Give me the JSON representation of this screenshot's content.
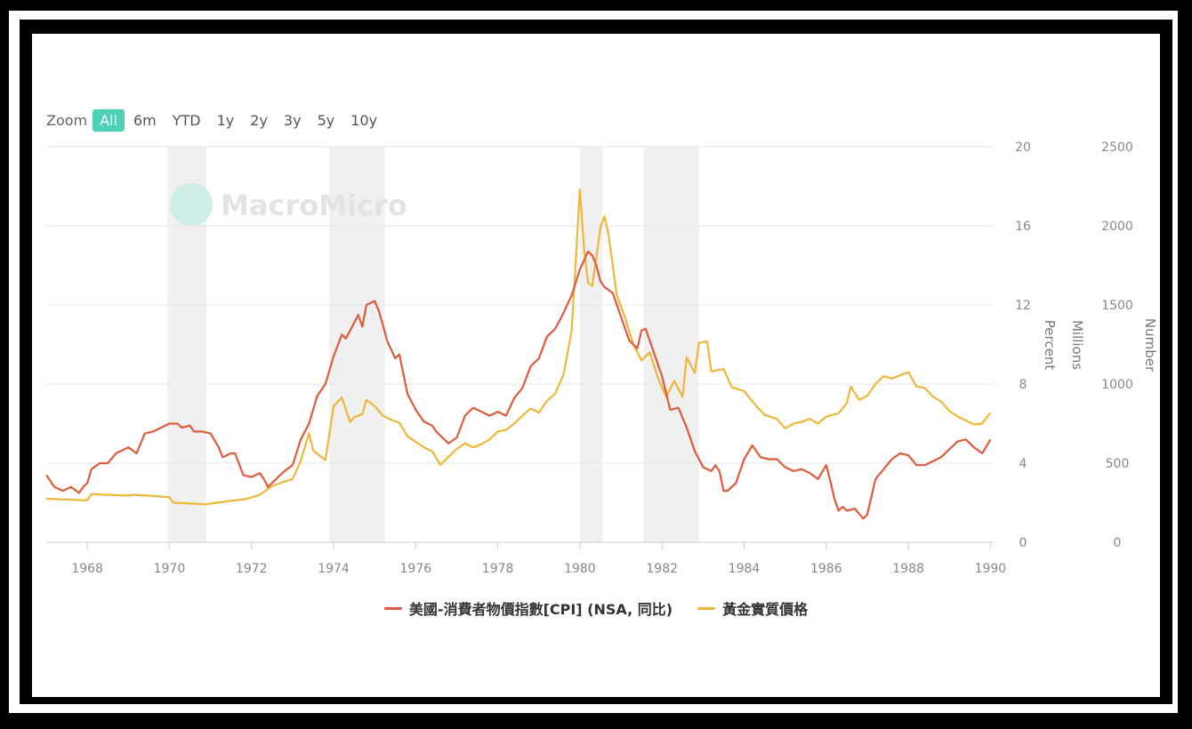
{
  "zoom": {
    "label": "Zoom",
    "buttons": [
      "All",
      "6m",
      "YTD",
      "1y",
      "2y",
      "3y",
      "5y",
      "10y"
    ],
    "active": "All"
  },
  "watermark": "MacroMicro",
  "colors": {
    "cpi": "#e05a3c",
    "gold": "#f0b63a",
    "recession": "#f0f0f0",
    "grid": "#e6e6e6",
    "axis_text": "#888888",
    "active_zoom": "#4fd1b5"
  },
  "legend": [
    {
      "label": "美國-消費者物價指數[CPI] (NSA, 同比)",
      "color_key": "cpi"
    },
    {
      "label": "黃金實質價格",
      "color_key": "gold"
    }
  ],
  "chart_data": {
    "type": "line",
    "x_range": [
      1967,
      1990.1
    ],
    "x_ticks": [
      "1968",
      "1970",
      "1972",
      "1974",
      "1976",
      "1978",
      "1980",
      "1982",
      "1984",
      "1986",
      "1988",
      "1990"
    ],
    "axes": [
      {
        "id": "percent",
        "label": "Percent",
        "ylim": [
          0,
          20
        ],
        "ticks": [
          "0",
          "4",
          "8",
          "12",
          "16",
          "20"
        ]
      },
      {
        "id": "millions",
        "label": "Millions",
        "ylim": [
          0,
          2500
        ],
        "ticks": []
      },
      {
        "id": "number",
        "label": "Number",
        "ylim": [
          0,
          2500
        ],
        "ticks": [
          "0",
          "500",
          "1000",
          "1500",
          "2000",
          "2500"
        ]
      }
    ],
    "recessions": [
      [
        1969.95,
        1970.9
      ],
      [
        1973.9,
        1975.25
      ],
      [
        1980.0,
        1980.55
      ],
      [
        1981.55,
        1982.9
      ]
    ],
    "series": [
      {
        "name": "美國-消費者物價指數[CPI] (NSA, 同比)",
        "axis": "percent",
        "color_key": "cpi",
        "points": [
          [
            1967.0,
            3.4
          ],
          [
            1967.2,
            2.8
          ],
          [
            1967.4,
            2.6
          ],
          [
            1967.6,
            2.8
          ],
          [
            1967.8,
            2.5
          ],
          [
            1967.9,
            2.8
          ],
          [
            1968.0,
            3.0
          ],
          [
            1968.1,
            3.7
          ],
          [
            1968.3,
            4.0
          ],
          [
            1968.5,
            4.0
          ],
          [
            1968.7,
            4.5
          ],
          [
            1968.9,
            4.7
          ],
          [
            1969.0,
            4.8
          ],
          [
            1969.2,
            4.5
          ],
          [
            1969.4,
            5.5
          ],
          [
            1969.6,
            5.6
          ],
          [
            1969.8,
            5.8
          ],
          [
            1970.0,
            6.0
          ],
          [
            1970.2,
            6.0
          ],
          [
            1970.3,
            5.8
          ],
          [
            1970.5,
            5.9
          ],
          [
            1970.6,
            5.6
          ],
          [
            1970.8,
            5.6
          ],
          [
            1971.0,
            5.5
          ],
          [
            1971.2,
            4.8
          ],
          [
            1971.3,
            4.3
          ],
          [
            1971.5,
            4.5
          ],
          [
            1971.6,
            4.5
          ],
          [
            1971.8,
            3.4
          ],
          [
            1972.0,
            3.3
          ],
          [
            1972.2,
            3.5
          ],
          [
            1972.3,
            3.2
          ],
          [
            1972.4,
            2.8
          ],
          [
            1972.6,
            3.2
          ],
          [
            1972.8,
            3.6
          ],
          [
            1973.0,
            3.9
          ],
          [
            1973.2,
            5.2
          ],
          [
            1973.4,
            6.0
          ],
          [
            1973.6,
            7.4
          ],
          [
            1973.8,
            8.0
          ],
          [
            1974.0,
            9.4
          ],
          [
            1974.2,
            10.5
          ],
          [
            1974.3,
            10.3
          ],
          [
            1974.5,
            11.1
          ],
          [
            1974.6,
            11.5
          ],
          [
            1974.7,
            10.9
          ],
          [
            1974.8,
            12.0
          ],
          [
            1975.0,
            12.2
          ],
          [
            1975.1,
            11.7
          ],
          [
            1975.2,
            11.0
          ],
          [
            1975.3,
            10.2
          ],
          [
            1975.5,
            9.3
          ],
          [
            1975.6,
            9.5
          ],
          [
            1975.8,
            7.5
          ],
          [
            1976.0,
            6.7
          ],
          [
            1976.2,
            6.1
          ],
          [
            1976.4,
            5.9
          ],
          [
            1976.5,
            5.6
          ],
          [
            1976.6,
            5.4
          ],
          [
            1976.8,
            5.0
          ],
          [
            1977.0,
            5.3
          ],
          [
            1977.2,
            6.4
          ],
          [
            1977.4,
            6.8
          ],
          [
            1977.6,
            6.6
          ],
          [
            1977.8,
            6.4
          ],
          [
            1978.0,
            6.6
          ],
          [
            1978.2,
            6.4
          ],
          [
            1978.4,
            7.3
          ],
          [
            1978.6,
            7.8
          ],
          [
            1978.8,
            8.9
          ],
          [
            1979.0,
            9.3
          ],
          [
            1979.2,
            10.4
          ],
          [
            1979.4,
            10.8
          ],
          [
            1979.6,
            11.6
          ],
          [
            1979.8,
            12.5
          ],
          [
            1980.0,
            13.8
          ],
          [
            1980.2,
            14.7
          ],
          [
            1980.3,
            14.5
          ],
          [
            1980.4,
            14.0
          ],
          [
            1980.5,
            13.2
          ],
          [
            1980.6,
            12.9
          ],
          [
            1980.8,
            12.6
          ],
          [
            1981.0,
            11.4
          ],
          [
            1981.2,
            10.2
          ],
          [
            1981.4,
            9.8
          ],
          [
            1981.5,
            10.7
          ],
          [
            1981.6,
            10.8
          ],
          [
            1981.8,
            9.6
          ],
          [
            1982.0,
            8.4
          ],
          [
            1982.2,
            6.7
          ],
          [
            1982.4,
            6.8
          ],
          [
            1982.6,
            5.8
          ],
          [
            1982.8,
            4.6
          ],
          [
            1983.0,
            3.8
          ],
          [
            1983.2,
            3.6
          ],
          [
            1983.3,
            3.9
          ],
          [
            1983.4,
            3.6
          ],
          [
            1983.5,
            2.6
          ],
          [
            1983.6,
            2.6
          ],
          [
            1983.8,
            3.0
          ],
          [
            1984.0,
            4.2
          ],
          [
            1984.2,
            4.9
          ],
          [
            1984.4,
            4.3
          ],
          [
            1984.6,
            4.2
          ],
          [
            1984.8,
            4.2
          ],
          [
            1985.0,
            3.8
          ],
          [
            1985.2,
            3.6
          ],
          [
            1985.4,
            3.7
          ],
          [
            1985.6,
            3.5
          ],
          [
            1985.8,
            3.2
          ],
          [
            1986.0,
            3.9
          ],
          [
            1986.1,
            3.1
          ],
          [
            1986.2,
            2.2
          ],
          [
            1986.3,
            1.6
          ],
          [
            1986.4,
            1.8
          ],
          [
            1986.5,
            1.6
          ],
          [
            1986.7,
            1.7
          ],
          [
            1986.9,
            1.2
          ],
          [
            1987.0,
            1.4
          ],
          [
            1987.2,
            3.2
          ],
          [
            1987.4,
            3.7
          ],
          [
            1987.6,
            4.2
          ],
          [
            1987.8,
            4.5
          ],
          [
            1988.0,
            4.4
          ],
          [
            1988.2,
            3.9
          ],
          [
            1988.4,
            3.9
          ],
          [
            1988.6,
            4.1
          ],
          [
            1988.8,
            4.3
          ],
          [
            1989.0,
            4.7
          ],
          [
            1989.2,
            5.1
          ],
          [
            1989.4,
            5.2
          ],
          [
            1989.6,
            4.8
          ],
          [
            1989.8,
            4.5
          ],
          [
            1990.0,
            5.2
          ]
        ]
      },
      {
        "name": "黃金實質價格",
        "axis": "number",
        "color_key": "gold",
        "points": [
          [
            1967.0,
            275
          ],
          [
            1967.5,
            270
          ],
          [
            1968.0,
            265
          ],
          [
            1968.1,
            305
          ],
          [
            1968.5,
            300
          ],
          [
            1969.0,
            295
          ],
          [
            1969.1,
            300
          ],
          [
            1969.5,
            295
          ],
          [
            1970.0,
            285
          ],
          [
            1970.1,
            250
          ],
          [
            1970.5,
            245
          ],
          [
            1970.9,
            240
          ],
          [
            1971.0,
            245
          ],
          [
            1971.3,
            255
          ],
          [
            1971.6,
            265
          ],
          [
            1971.9,
            275
          ],
          [
            1972.2,
            300
          ],
          [
            1972.5,
            355
          ],
          [
            1972.7,
            375
          ],
          [
            1973.0,
            400
          ],
          [
            1973.2,
            515
          ],
          [
            1973.4,
            690
          ],
          [
            1973.5,
            580
          ],
          [
            1973.8,
            520
          ],
          [
            1974.0,
            860
          ],
          [
            1974.2,
            915
          ],
          [
            1974.4,
            760
          ],
          [
            1974.5,
            790
          ],
          [
            1974.7,
            810
          ],
          [
            1974.8,
            900
          ],
          [
            1975.0,
            860
          ],
          [
            1975.2,
            800
          ],
          [
            1975.4,
            775
          ],
          [
            1975.6,
            755
          ],
          [
            1975.8,
            670
          ],
          [
            1976.0,
            635
          ],
          [
            1976.2,
            600
          ],
          [
            1976.4,
            575
          ],
          [
            1976.6,
            490
          ],
          [
            1976.8,
            540
          ],
          [
            1977.0,
            590
          ],
          [
            1977.2,
            625
          ],
          [
            1977.4,
            600
          ],
          [
            1977.6,
            620
          ],
          [
            1977.8,
            650
          ],
          [
            1978.0,
            700
          ],
          [
            1978.2,
            710
          ],
          [
            1978.4,
            750
          ],
          [
            1978.6,
            800
          ],
          [
            1978.8,
            845
          ],
          [
            1979.0,
            820
          ],
          [
            1979.2,
            895
          ],
          [
            1979.4,
            940
          ],
          [
            1979.6,
            1060
          ],
          [
            1979.8,
            1340
          ],
          [
            1980.0,
            2230
          ],
          [
            1980.1,
            1860
          ],
          [
            1980.2,
            1640
          ],
          [
            1980.3,
            1620
          ],
          [
            1980.5,
            1990
          ],
          [
            1980.6,
            2060
          ],
          [
            1980.7,
            1940
          ],
          [
            1980.9,
            1560
          ],
          [
            1981.1,
            1420
          ],
          [
            1981.3,
            1250
          ],
          [
            1981.5,
            1150
          ],
          [
            1981.7,
            1200
          ],
          [
            1981.9,
            1040
          ],
          [
            1982.1,
            920
          ],
          [
            1982.3,
            1020
          ],
          [
            1982.5,
            920
          ],
          [
            1982.6,
            1170
          ],
          [
            1982.8,
            1070
          ],
          [
            1982.9,
            1260
          ],
          [
            1983.1,
            1270
          ],
          [
            1983.2,
            1080
          ],
          [
            1983.5,
            1095
          ],
          [
            1983.7,
            980
          ],
          [
            1984.0,
            955
          ],
          [
            1984.3,
            860
          ],
          [
            1984.5,
            805
          ],
          [
            1984.8,
            780
          ],
          [
            1985.0,
            720
          ],
          [
            1985.2,
            750
          ],
          [
            1985.4,
            760
          ],
          [
            1985.6,
            780
          ],
          [
            1985.8,
            750
          ],
          [
            1986.0,
            795
          ],
          [
            1986.3,
            815
          ],
          [
            1986.5,
            880
          ],
          [
            1986.6,
            985
          ],
          [
            1986.8,
            900
          ],
          [
            1987.0,
            925
          ],
          [
            1987.2,
            1000
          ],
          [
            1987.4,
            1050
          ],
          [
            1987.6,
            1035
          ],
          [
            1987.8,
            1055
          ],
          [
            1988.0,
            1075
          ],
          [
            1988.2,
            985
          ],
          [
            1988.4,
            975
          ],
          [
            1988.6,
            920
          ],
          [
            1988.8,
            890
          ],
          [
            1989.0,
            830
          ],
          [
            1989.2,
            795
          ],
          [
            1989.4,
            770
          ],
          [
            1989.6,
            745
          ],
          [
            1989.8,
            750
          ],
          [
            1990.0,
            820
          ]
        ]
      }
    ]
  }
}
